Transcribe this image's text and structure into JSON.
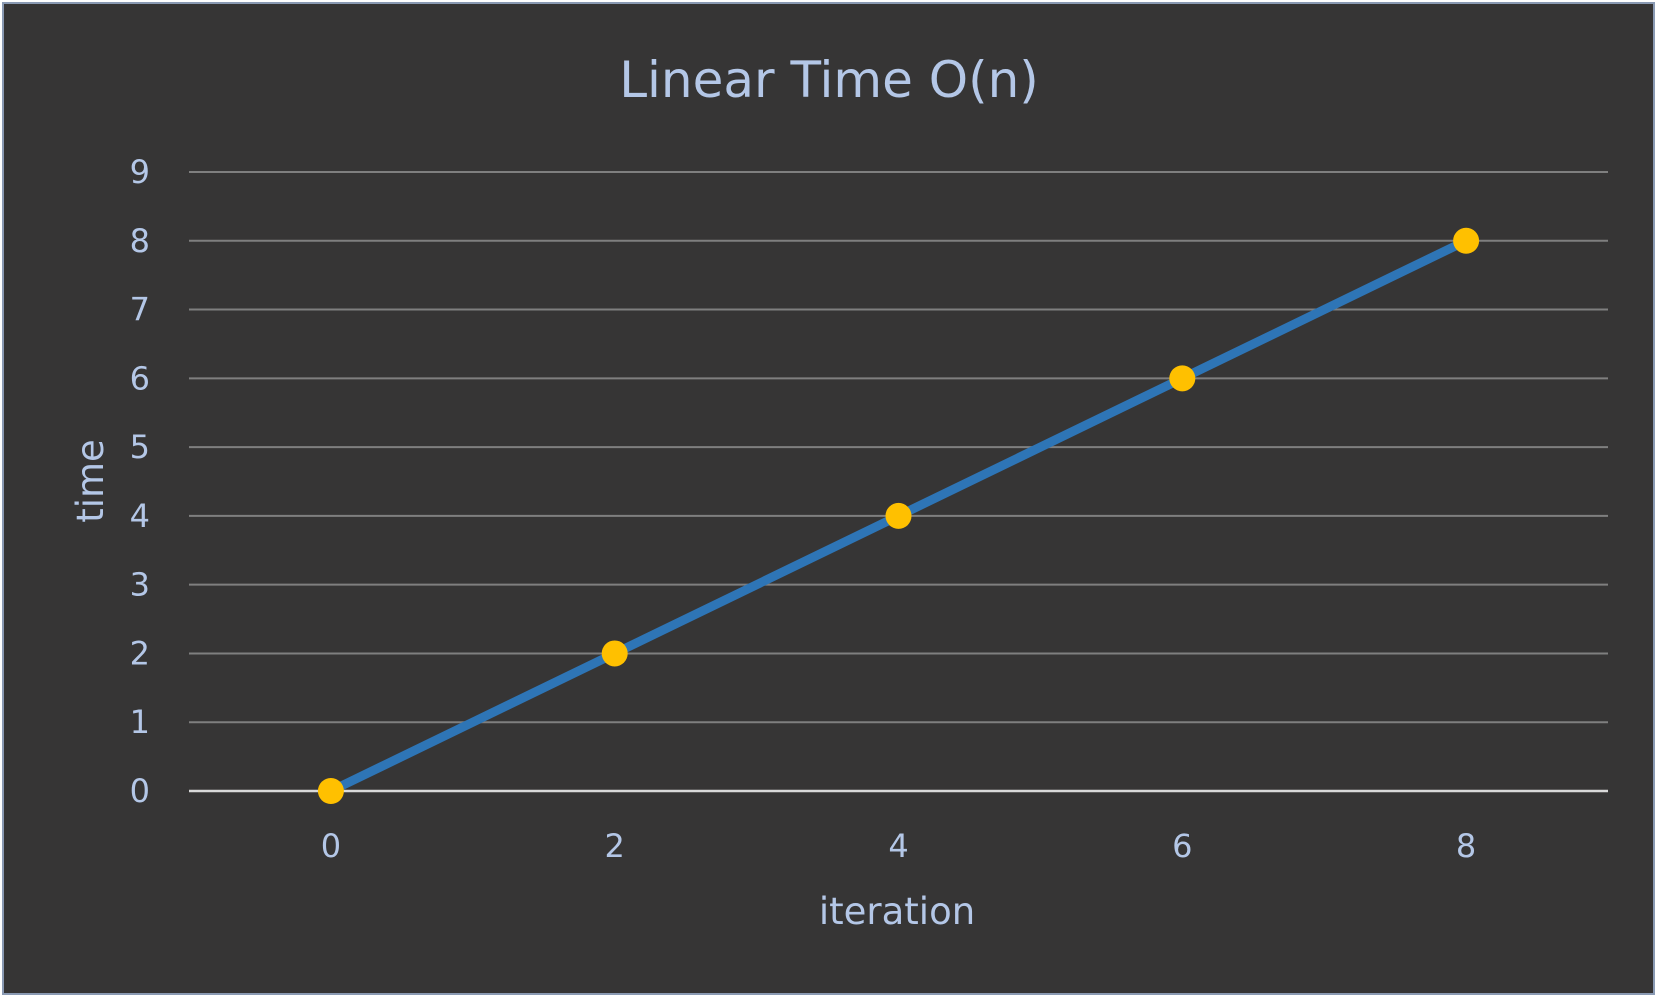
{
  "chart_data": {
    "type": "line",
    "title": "Linear Time O(n)",
    "xlabel": "iteration",
    "ylabel": "time",
    "x": [
      0,
      2,
      4,
      6,
      8
    ],
    "x_ticks": [
      "0",
      "2",
      "4",
      "6",
      "8"
    ],
    "y_ticks": [
      "0",
      "1",
      "2",
      "3",
      "4",
      "5",
      "6",
      "7",
      "8",
      "9"
    ],
    "xlim": [
      -1,
      9
    ],
    "ylim": [
      0,
      9
    ],
    "grid": true,
    "legend": "none",
    "series": [
      {
        "name": "time",
        "values": [
          0,
          2,
          4,
          6,
          8
        ]
      }
    ],
    "colors": {
      "background": "#363535",
      "line": "#2e75b6",
      "marker": "#ffc000",
      "grid": "#7f7f7f",
      "axis": "#d9d9d9",
      "text": "#b4c7e7",
      "frame_border": "#8a9ab3"
    }
  }
}
